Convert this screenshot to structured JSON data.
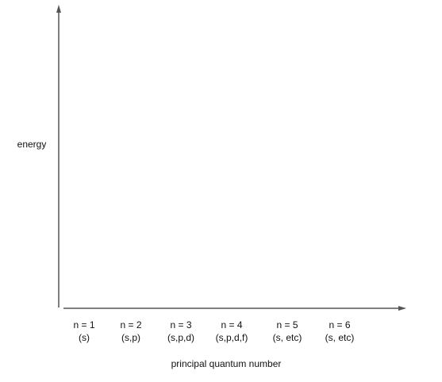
{
  "axes": {
    "y_label": "energy",
    "x_label": "principal quantum number"
  },
  "columns": [
    {
      "n": "n = 1",
      "subshells": "(s)"
    },
    {
      "n": "n = 2",
      "subshells": "(s,p)"
    },
    {
      "n": "n = 3",
      "subshells": "(s,p,d)"
    },
    {
      "n": "n = 4",
      "subshells": "(s,p,d,f)"
    },
    {
      "n": "n = 5",
      "subshells": "(s, etc)"
    },
    {
      "n": "n = 6",
      "subshells": "(s, etc)"
    }
  ]
}
